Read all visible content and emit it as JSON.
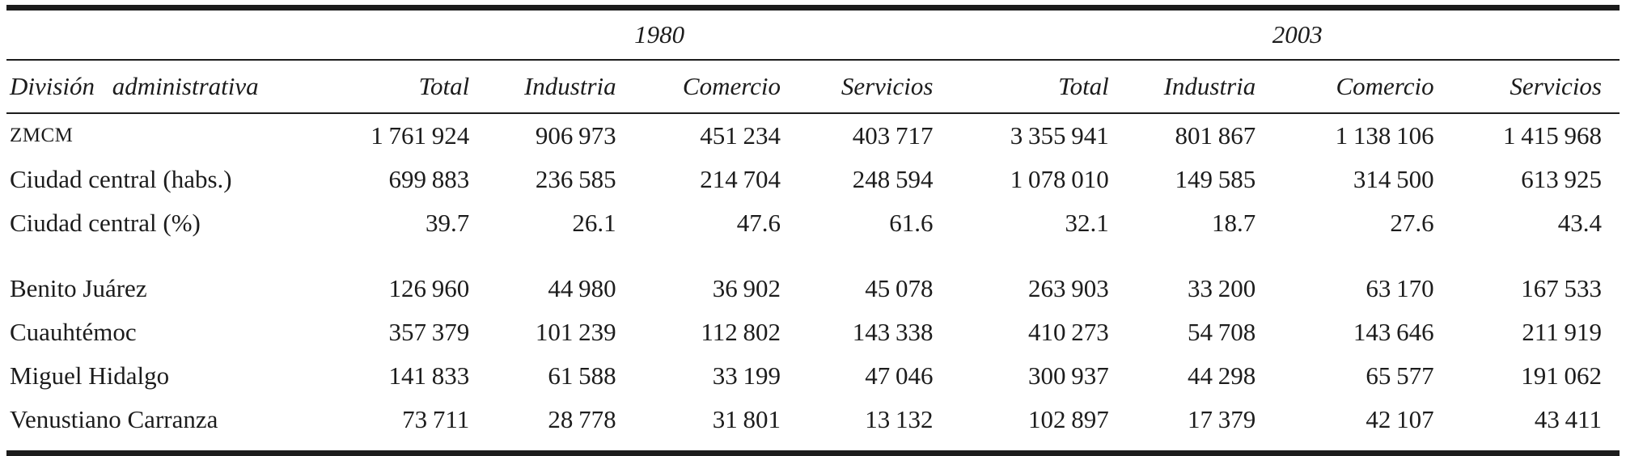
{
  "table": {
    "title_semantic": "Employment by administrative division, Mexico City, 1980 vs 2003",
    "year_groups": [
      "1980",
      "2003"
    ],
    "columns": [
      "División administrativa",
      "Total",
      "Industria",
      "Comercio",
      "Servicios",
      "Total",
      "Industria",
      "Comercio",
      "Servicios"
    ],
    "rows": [
      {
        "label": "ZMCM",
        "small_caps": true,
        "gap_before": false,
        "cells": [
          "1 761 924",
          "906 973",
          "451 234",
          "403 717",
          "3 355 941",
          "801 867",
          "1 138 106",
          "1 415 968"
        ]
      },
      {
        "label": "Ciudad central (habs.)",
        "small_caps": false,
        "gap_before": false,
        "cells": [
          "699 883",
          "236 585",
          "214 704",
          "248 594",
          "1 078 010",
          "149 585",
          "314 500",
          "613 925"
        ]
      },
      {
        "label": "Ciudad central (%)",
        "small_caps": false,
        "gap_before": false,
        "cells": [
          "39.7",
          "26.1",
          "47.6",
          "61.6",
          "32.1",
          "18.7",
          "27.6",
          "43.4"
        ]
      },
      {
        "label": "Benito Juárez",
        "small_caps": false,
        "gap_before": true,
        "cells": [
          "126 960",
          "44 980",
          "36 902",
          "45 078",
          "263 903",
          "33 200",
          "63 170",
          "167 533"
        ]
      },
      {
        "label": "Cuauhtémoc",
        "small_caps": false,
        "gap_before": false,
        "cells": [
          "357 379",
          "101 239",
          "112 802",
          "143 338",
          "410 273",
          "54 708",
          "143 646",
          "211 919"
        ]
      },
      {
        "label": "Miguel Hidalgo",
        "small_caps": false,
        "gap_before": false,
        "cells": [
          "141 833",
          "61 588",
          "33 199",
          "47 046",
          "300 937",
          "44 298",
          "65 577",
          "191 062"
        ]
      },
      {
        "label": "Venustiano Carranza",
        "small_caps": false,
        "gap_before": false,
        "cells": [
          "73 711",
          "28 778",
          "31 801",
          "13 132",
          "102 897",
          "17 379",
          "42 107",
          "43 411"
        ]
      }
    ]
  },
  "colors": {
    "text": "#1c1c1c",
    "rule": "#1c1c1c",
    "background": "#ffffff"
  }
}
